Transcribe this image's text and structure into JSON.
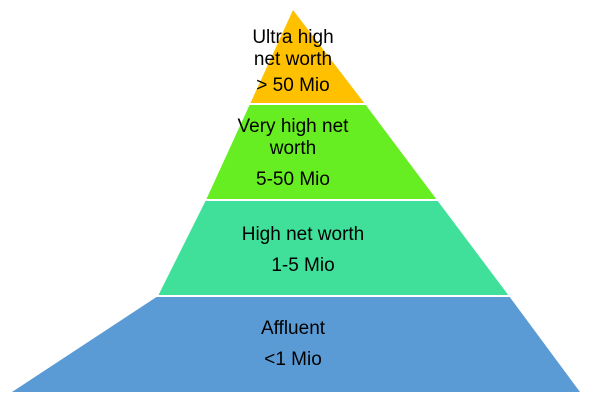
{
  "pyramid": {
    "tiers": [
      {
        "name_lines": [
          "Ultra high",
          "net worth"
        ],
        "range": "> 50 Mio",
        "color": "#FFC000"
      },
      {
        "name_lines": [
          "Very high net",
          "worth"
        ],
        "range": "5-50 Mio",
        "color": "#66EE22"
      },
      {
        "name_lines": [
          "High net worth"
        ],
        "range": "1-5 Mio",
        "color": "#40E09A"
      },
      {
        "name_lines": [
          "Affluent"
        ],
        "range": "<1 Mio",
        "color": "#5B9BD5"
      }
    ]
  }
}
